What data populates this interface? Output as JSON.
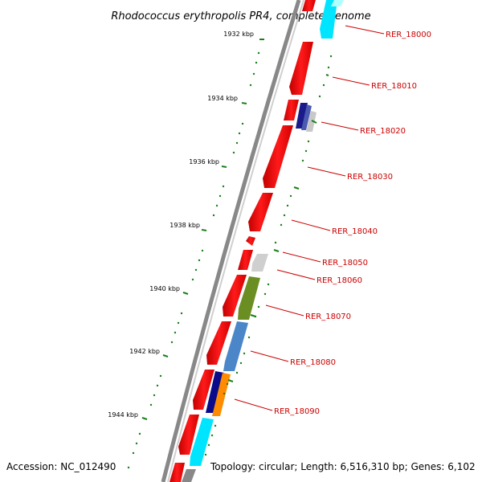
{
  "title": "Rhodococcus erythropolis PR4, complete genome",
  "footer": {
    "accession": "Accession: NC_012490",
    "topology": "Topology: circular; Length: 6,516,310 bp; Genes: 6,102"
  },
  "scale_labels": [
    "1932 kbp",
    "1934 kbp",
    "1936 kbp",
    "1938 kbp",
    "1940 kbp",
    "1942 kbp",
    "1944 kbp"
  ],
  "gene_labels": [
    "RER_18000",
    "RER_18010",
    "RER_18020",
    "RER_18030",
    "RER_18040",
    "RER_18050",
    "RER_18060",
    "RER_18070",
    "RER_18080",
    "RER_18090"
  ],
  "colors": {
    "forward_gene": "#ff0000",
    "backbone": "#888888",
    "label": "#cc0000",
    "scale_tick": "#1a7f1a"
  }
}
